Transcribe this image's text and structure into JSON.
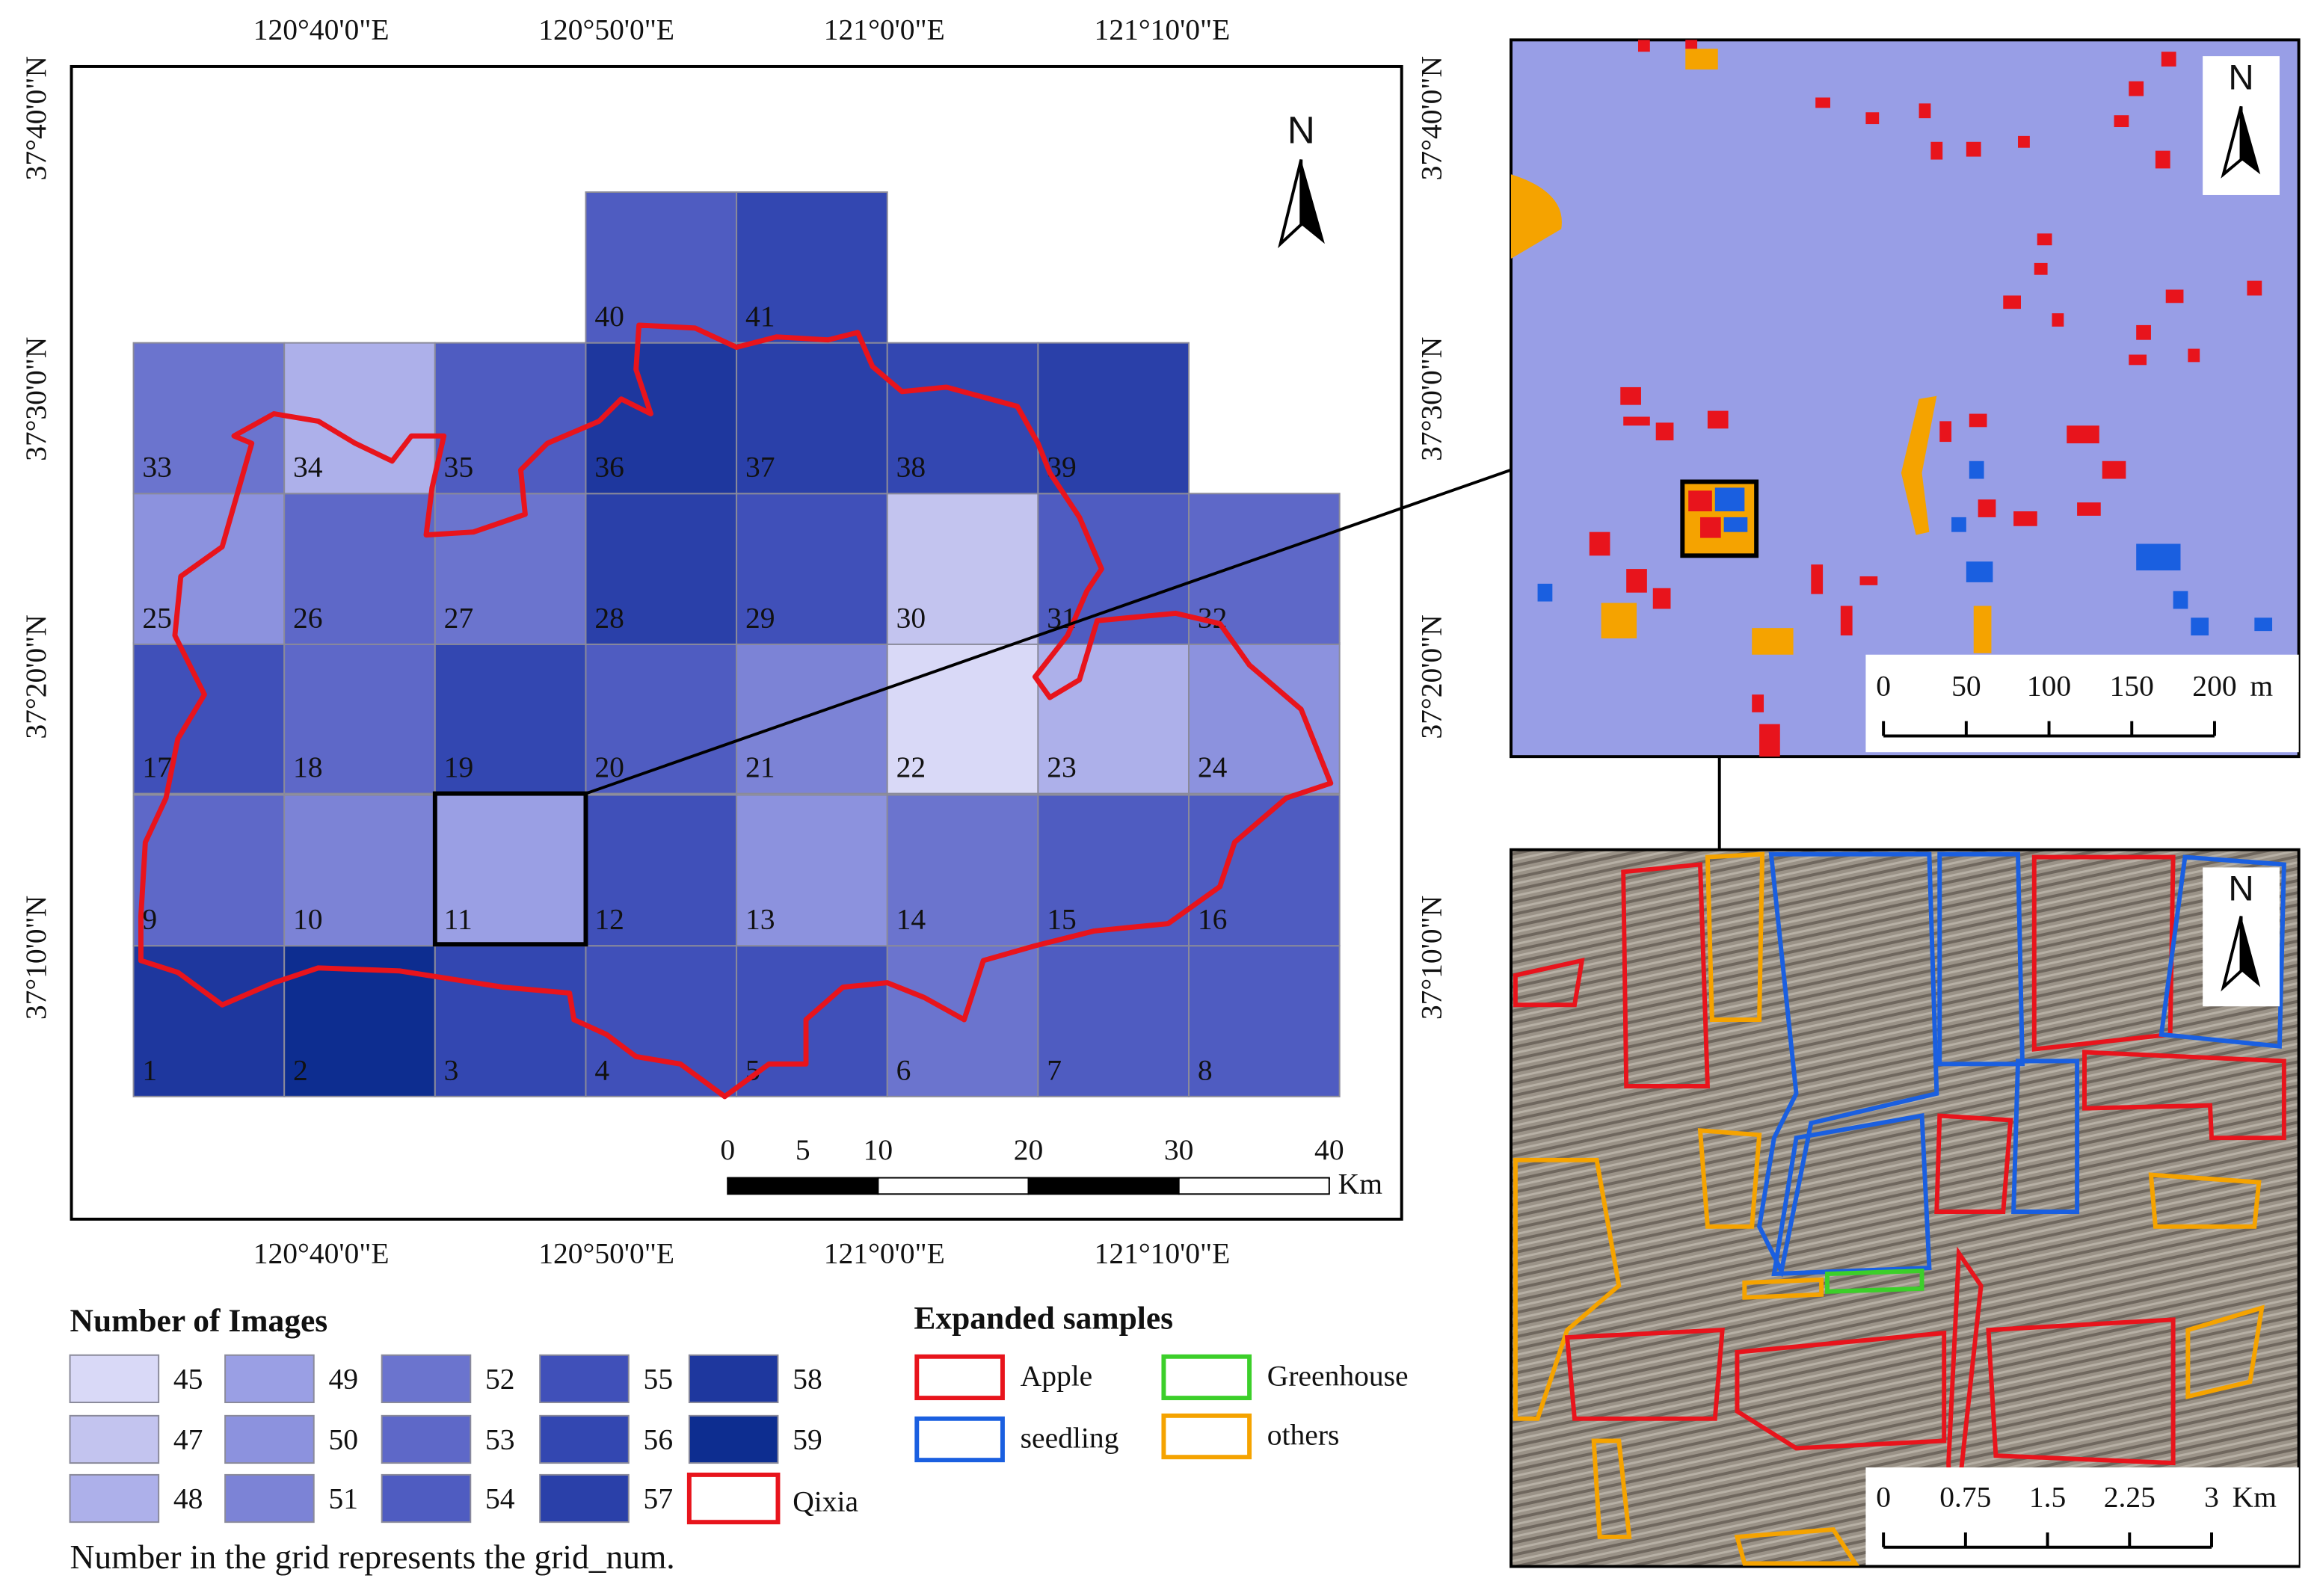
{
  "main_map": {
    "lon_labels": [
      "120°40'0\"E",
      "120°50'0\"E",
      "121°0'0\"E",
      "121°10'0\"E"
    ],
    "lat_labels": [
      "37°40'0\"N",
      "37°30'0\"N",
      "37°20'0\"N",
      "37°10'0\"N"
    ],
    "north": "N",
    "cells": [
      {
        "num": 1,
        "images": 58
      },
      {
        "num": 2,
        "images": 59
      },
      {
        "num": 3,
        "images": 56
      },
      {
        "num": 4,
        "images": 55
      },
      {
        "num": 5,
        "images": 55
      },
      {
        "num": 6,
        "images": 52
      },
      {
        "num": 7,
        "images": 54
      },
      {
        "num": 8,
        "images": 54
      },
      {
        "num": 9,
        "images": 53
      },
      {
        "num": 10,
        "images": 51
      },
      {
        "num": 11,
        "images": 49
      },
      {
        "num": 12,
        "images": 55
      },
      {
        "num": 13,
        "images": 50
      },
      {
        "num": 14,
        "images": 52
      },
      {
        "num": 15,
        "images": 54
      },
      {
        "num": 16,
        "images": 54
      },
      {
        "num": 17,
        "images": 55
      },
      {
        "num": 18,
        "images": 53
      },
      {
        "num": 19,
        "images": 56
      },
      {
        "num": 20,
        "images": 54
      },
      {
        "num": 21,
        "images": 51
      },
      {
        "num": 22,
        "images": 45
      },
      {
        "num": 23,
        "images": 48
      },
      {
        "num": 24,
        "images": 50
      },
      {
        "num": 25,
        "images": 50
      },
      {
        "num": 26,
        "images": 53
      },
      {
        "num": 27,
        "images": 52
      },
      {
        "num": 28,
        "images": 57
      },
      {
        "num": 29,
        "images": 55
      },
      {
        "num": 30,
        "images": 47
      },
      {
        "num": 31,
        "images": 54
      },
      {
        "num": 32,
        "images": 53
      },
      {
        "num": 33,
        "images": 52
      },
      {
        "num": 34,
        "images": 48
      },
      {
        "num": 35,
        "images": 54
      },
      {
        "num": 36,
        "images": 58
      },
      {
        "num": 37,
        "images": 57
      },
      {
        "num": 38,
        "images": 56
      },
      {
        "num": 39,
        "images": 57
      },
      {
        "num": 40,
        "images": 54
      },
      {
        "num": 41,
        "images": 56
      }
    ],
    "scale": {
      "ticks": [
        0,
        5,
        10,
        20,
        30,
        40
      ],
      "unit": "Km"
    }
  },
  "legend": {
    "title": "Number of Images",
    "classes": [
      {
        "value": 45,
        "color": "#d9d9f7"
      },
      {
        "value": 47,
        "color": "#c3c4ef"
      },
      {
        "value": 48,
        "color": "#adb0ea"
      },
      {
        "value": 49,
        "color": "#9a9fe4"
      },
      {
        "value": 50,
        "color": "#8c92de"
      },
      {
        "value": 51,
        "color": "#7c83d6"
      },
      {
        "value": 52,
        "color": "#6b74ce"
      },
      {
        "value": 53,
        "color": "#5e68c8"
      },
      {
        "value": 54,
        "color": "#4f5cc1"
      },
      {
        "value": 55,
        "color": "#4050b9"
      },
      {
        "value": 56,
        "color": "#3347b1"
      },
      {
        "value": 57,
        "color": "#2a40a9"
      },
      {
        "value": 58,
        "color": "#1e379e"
      },
      {
        "value": 59,
        "color": "#0d2d90"
      }
    ],
    "boundary": {
      "label": "Qixia",
      "color": "#e8141c"
    }
  },
  "samples": {
    "title": "Expanded samples",
    "items": [
      {
        "label": "Apple",
        "color": "#e8141c"
      },
      {
        "label": "seedling",
        "color": "#1a5fe0"
      },
      {
        "label": "Greenhouse",
        "color": "#3ccf2a"
      },
      {
        "label": "others",
        "color": "#f5a300"
      }
    ]
  },
  "note": "Number in the grid represents the grid_num.",
  "inset_classified": {
    "north": "N",
    "scale": {
      "ticks": [
        0,
        50,
        100,
        150,
        200
      ],
      "unit": "m"
    }
  },
  "inset_image": {
    "north": "N",
    "scale": {
      "ticks": [
        0,
        0.75,
        1.5,
        2.25,
        3
      ],
      "unit": "Km"
    }
  }
}
